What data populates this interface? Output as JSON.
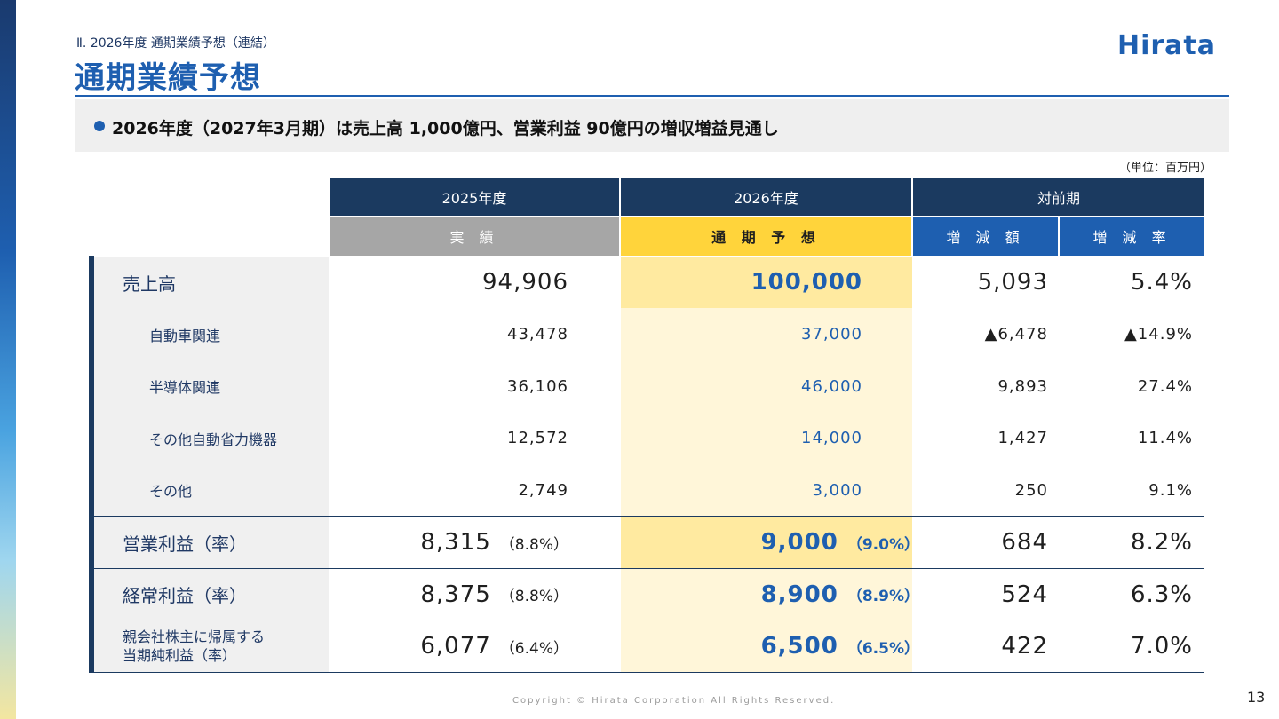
{
  "header": {
    "section_label": "Ⅱ. 2026年度 通期業績予想（連結）",
    "title": "通期業績予想",
    "logo_text": "Hirata"
  },
  "summary": {
    "text": "2026年度（2027年3月期）は売上高 1,000億円、営業利益 90億円の増収増益見通し"
  },
  "unit": "（単位：百万円）",
  "table": {
    "col_groups": [
      "2025年度",
      "2026年度",
      "対前期"
    ],
    "col_sub": [
      "実 績",
      "通 期 予 想",
      "増 減 額",
      "増 減 率"
    ],
    "rows": [
      {
        "label": "売上高",
        "actual": "94,906",
        "actual_pct": "",
        "forecast": "100,000",
        "forecast_pct": "",
        "diff": "5,093",
        "rate": "5.4%"
      },
      {
        "label": "自動車関連",
        "actual": "43,478",
        "actual_pct": "",
        "forecast": "37,000",
        "forecast_pct": "",
        "diff": "▲6,478",
        "rate": "▲14.9%"
      },
      {
        "label": "半導体関連",
        "actual": "36,106",
        "actual_pct": "",
        "forecast": "46,000",
        "forecast_pct": "",
        "diff": "9,893",
        "rate": "27.4%"
      },
      {
        "label": "その他自動省力機器",
        "actual": "12,572",
        "actual_pct": "",
        "forecast": "14,000",
        "forecast_pct": "",
        "diff": "1,427",
        "rate": "11.4%"
      },
      {
        "label": "その他",
        "actual": "2,749",
        "actual_pct": "",
        "forecast": "3,000",
        "forecast_pct": "",
        "diff": "250",
        "rate": "9.1%"
      },
      {
        "label": "営業利益（率）",
        "actual": "8,315",
        "actual_pct": "（8.8%）",
        "forecast": "9,000",
        "forecast_pct": "（9.0%）",
        "diff": "684",
        "rate": "8.2%"
      },
      {
        "label": "経常利益（率）",
        "actual": "8,375",
        "actual_pct": "（8.8%）",
        "forecast": "8,900",
        "forecast_pct": "（8.9%）",
        "diff": "524",
        "rate": "6.3%"
      },
      {
        "label_line1": "親会社株主に帰属する",
        "label_line2": "当期純利益（率）",
        "actual": "6,077",
        "actual_pct": "（6.4%）",
        "forecast": "6,500",
        "forecast_pct": "（6.5%）",
        "diff": "422",
        "rate": "7.0%"
      }
    ]
  },
  "colors": {
    "brand_blue": "#1e5fb0",
    "header_navy": "#1b3a60",
    "actual_header": "#a6a6a6",
    "forecast_header": "#ffd43b",
    "change_header": "#1e5fb0"
  },
  "footer": {
    "copyright": "Copyright © Hirata Corporation All Rights Reserved.",
    "page_number": "13"
  }
}
